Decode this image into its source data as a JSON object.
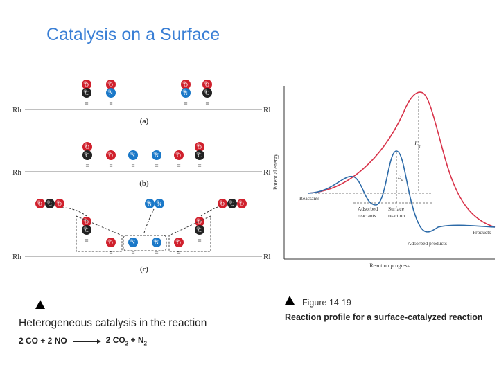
{
  "slide": {
    "title": "Catalysis on a Surface"
  },
  "surface_figure": {
    "surface_label": "Rh",
    "surface_label_right": "Rl",
    "panel_labels": [
      "(a)",
      "(b)",
      "(c)"
    ],
    "atom_labels": {
      "oxygen": "O",
      "nitrogen": "N",
      "carbon": "C"
    },
    "bond_symbol": "≡",
    "colors": {
      "oxygen": "#d0202c",
      "nitrogen": "#1a78c8",
      "carbon": "#222222",
      "surface": "#9a9a9a"
    }
  },
  "energy_figure": {
    "y_label": "Potential energy",
    "x_label": "Reaction progress",
    "ea_uncatalyzed": "E",
    "ea_uncatalyzed_sub": "a",
    "ea_catalyzed": "E",
    "ea_catalyzed_sub": "a",
    "points": {
      "reactants": "Reactants",
      "adsorbed_reactants": [
        "Adsorbed",
        "reactants"
      ],
      "surface_reaction": [
        "Surface",
        "reaction"
      ],
      "products": "Products",
      "adsorbed_products": "Adsorbed products"
    },
    "colors": {
      "uncatalyzed": "#d8334a",
      "catalyzed": "#2c6aa8"
    }
  },
  "captions": {
    "left": "Heterogeneous catalysis in the reaction",
    "equation": {
      "left": "2 CO + 2 NO",
      "right_a": "2 CO",
      "right_a_sub": "2",
      "right_b": " + N",
      "right_b_sub": "2"
    },
    "figure_number": "Figure 14-19",
    "right": "Reaction profile for a surface-catalyzed reaction"
  }
}
